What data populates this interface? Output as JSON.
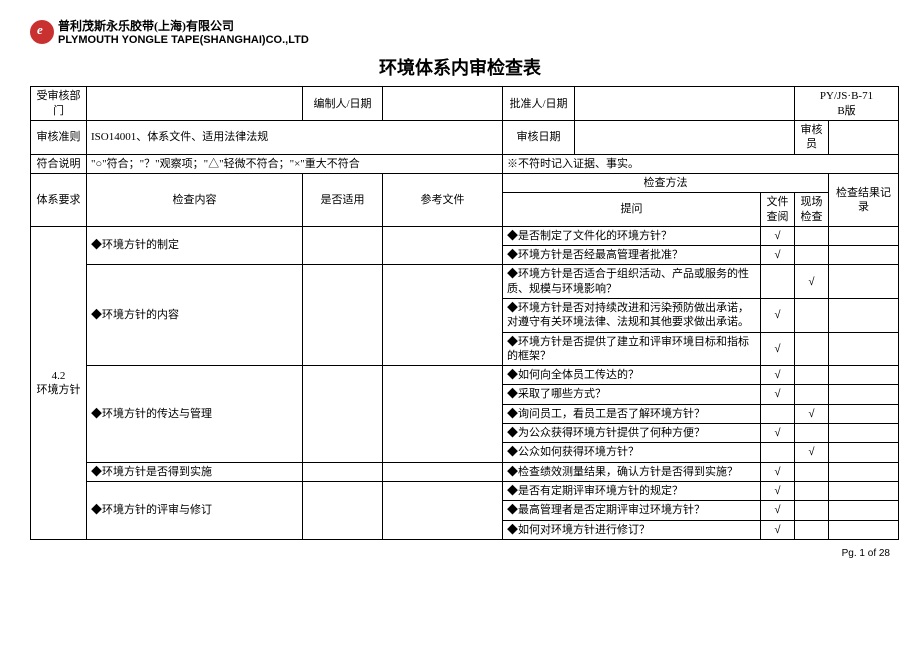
{
  "company": {
    "cn": "普利茂斯永乐胶带(上海)有限公司",
    "en": "PLYMOUTH YONGLE TAPE(SHANGHAI)CO.,LTD"
  },
  "doc_title": "环境体系内审检查表",
  "form_code": "PY/JS·B-71",
  "form_version": "B版",
  "row1": {
    "c1": "受审核部门",
    "c1v": "",
    "c2": "编制人/日期",
    "c2v": "",
    "c3": "批准人/日期",
    "c3v": ""
  },
  "row2": {
    "c1": "审核准则",
    "c1v": "ISO14001、体系文件、适用法律法规",
    "c2": "审核日期",
    "c2v": "",
    "c3": "审核员",
    "c3v": ""
  },
  "row3": {
    "c1": "符合说明",
    "c1v": "\"○\"符合；\"？\"观察项；\"△\"轻微不符合；\"×\"重大不符合",
    "c2": "※不符时记入证据、事实。"
  },
  "thead": {
    "c1": "体系要求",
    "c2": "检查内容",
    "c3": "是否适用",
    "c4": "参考文件",
    "c5": "检查方法",
    "c5a": "提问",
    "c5b": "文件查阅",
    "c5c": "现场检查",
    "c6": "检查结果记录"
  },
  "section": {
    "code": "4.2",
    "name": "环境方针"
  },
  "groups": [
    {
      "title": "◆环境方针的制定",
      "rows": [
        {
          "q": "◆是否制定了文件化的环境方针？",
          "fc": "√",
          "sc": ""
        },
        {
          "q": "◆环境方针是否经最高管理者批准？",
          "fc": "√",
          "sc": ""
        }
      ]
    },
    {
      "title": "◆环境方针的内容",
      "rows": [
        {
          "q": "◆环境方针是否适合于组织活动、产品或服务的性质、规模与环境影响？",
          "fc": "",
          "sc": "√"
        },
        {
          "q": "◆环境方针是否对持续改进和污染预防做出承诺，对遵守有关环境法律、法规和其他要求做出承诺。",
          "fc": "√",
          "sc": ""
        },
        {
          "q": "◆环境方针是否提供了建立和评审环境目标和指标的框架？",
          "fc": "√",
          "sc": ""
        }
      ]
    },
    {
      "title": "◆环境方针的传达与管理",
      "rows": [
        {
          "q": "◆如何向全体员工传达的？",
          "fc": "√",
          "sc": ""
        },
        {
          "q": "◆采取了哪些方式？",
          "fc": "√",
          "sc": ""
        },
        {
          "q": "◆询问员工，看员工是否了解环境方针？",
          "fc": "",
          "sc": "√"
        },
        {
          "q": "◆为公众获得环境方针提供了何种方便？",
          "fc": "√",
          "sc": ""
        },
        {
          "q": "◆公众如何获得环境方针？",
          "fc": "",
          "sc": "√"
        }
      ]
    },
    {
      "title": "◆环境方针是否得到实施",
      "rows": [
        {
          "q": "◆检查绩效测量结果，确认方针是否得到实施？",
          "fc": "√",
          "sc": ""
        }
      ]
    },
    {
      "title": "◆环境方针的评审与修订",
      "rows": [
        {
          "q": "◆是否有定期评审环境方针的规定？",
          "fc": "√",
          "sc": ""
        },
        {
          "q": "◆最高管理者是否定期评审过环境方针？",
          "fc": "√",
          "sc": ""
        },
        {
          "q": "◆如何对环境方针进行修订？",
          "fc": "√",
          "sc": ""
        }
      ]
    }
  ],
  "page_num": "Pg. 1 of 28"
}
